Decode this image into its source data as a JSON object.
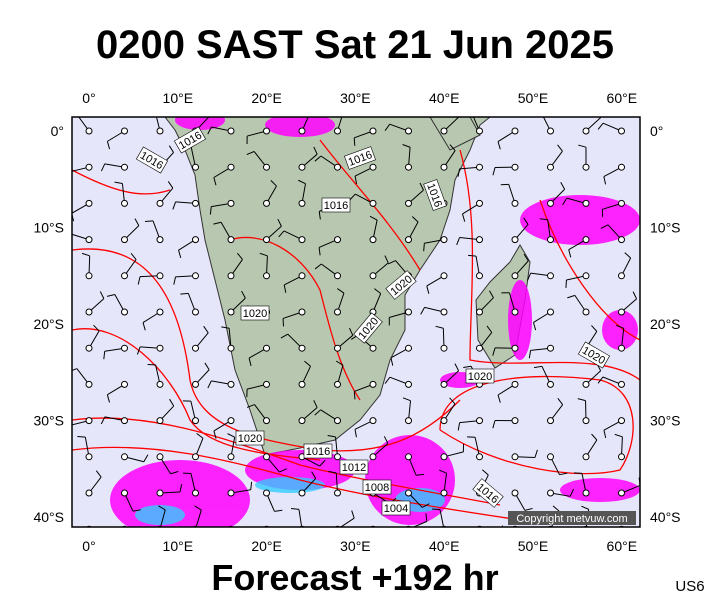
{
  "title": "0200 SAST Sat 21 Jun 2025",
  "footer": "Forecast +192 hr",
  "code": "US6",
  "copyright": "Copyright metvuw.com",
  "axes": {
    "lon": [
      "0°",
      "10°E",
      "20°E",
      "30°E",
      "40°E",
      "50°E",
      "60°E"
    ],
    "lat": [
      "0°",
      "10°S",
      "20°S",
      "30°S",
      "40°S"
    ]
  },
  "isobar_labels": [
    "1016",
    "1016",
    "1016",
    "1016",
    "1016",
    "1020",
    "1020",
    "1020",
    "1020",
    "1020",
    "1020",
    "1016",
    "1012",
    "1008",
    "1004",
    "1016"
  ]
}
